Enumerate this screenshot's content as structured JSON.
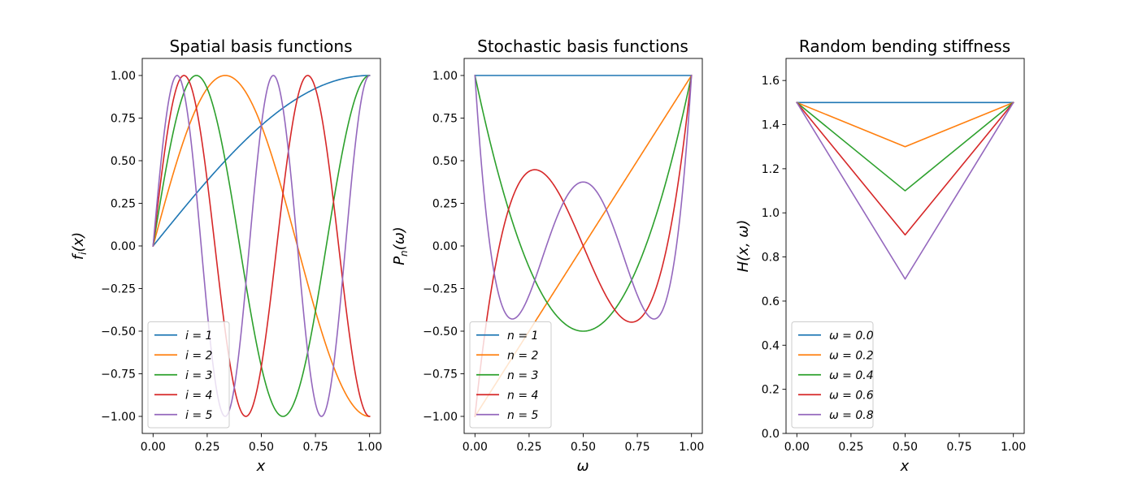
{
  "chart_data": [
    {
      "type": "line",
      "title": "Spatial basis functions",
      "xlabel": "x",
      "ylabel": "f_i(x)",
      "xlim": [
        -0.05,
        1.05
      ],
      "ylim": [
        -1.1,
        1.1
      ],
      "xticks": [
        0.0,
        0.25,
        0.5,
        0.75,
        1.0
      ],
      "xtick_labels": [
        "0.00",
        "0.25",
        "0.50",
        "0.75",
        "1.00"
      ],
      "yticks": [
        -1.0,
        -0.75,
        -0.5,
        -0.25,
        0.0,
        0.25,
        0.5,
        0.75,
        1.0
      ],
      "ytick_labels": [
        "−1.00",
        "−0.75",
        "−0.50",
        "−0.25",
        "0.00",
        "0.25",
        "0.50",
        "0.75",
        "1.00"
      ],
      "legend_position": "lower-left",
      "series": [
        {
          "name": "i = 1",
          "color": "#1f77b4",
          "function": "sin((2i-1)πx/2)",
          "i": 1
        },
        {
          "name": "i = 2",
          "color": "#ff7f0e",
          "function": "sin((2i-1)πx/2)",
          "i": 2
        },
        {
          "name": "i = 3",
          "color": "#2ca02c",
          "function": "sin((2i-1)πx/2)",
          "i": 3
        },
        {
          "name": "i = 4",
          "color": "#d62728",
          "function": "sin((2i-1)πx/2)",
          "i": 4
        },
        {
          "name": "i = 5",
          "color": "#9467bd",
          "function": "sin((2i-1)πx/2)",
          "i": 5
        }
      ]
    },
    {
      "type": "line",
      "title": "Stochastic basis functions",
      "xlabel": "ω",
      "ylabel": "P_n(ω)",
      "xlim": [
        -0.05,
        1.05
      ],
      "ylim": [
        -1.1,
        1.1
      ],
      "xticks": [
        0.0,
        0.25,
        0.5,
        0.75,
        1.0
      ],
      "xtick_labels": [
        "0.00",
        "0.25",
        "0.50",
        "0.75",
        "1.00"
      ],
      "yticks": [
        -1.0,
        -0.75,
        -0.5,
        -0.25,
        0.0,
        0.25,
        0.5,
        0.75,
        1.0
      ],
      "ytick_labels": [
        "−1.00",
        "−0.75",
        "−0.50",
        "−0.25",
        "0.00",
        "0.25",
        "0.50",
        "0.75",
        "1.00"
      ],
      "legend_position": "lower-left",
      "series": [
        {
          "name": "n = 1",
          "color": "#1f77b4",
          "function": "shifted Legendre P_{n-1}(2ω-1)",
          "n": 1
        },
        {
          "name": "n = 2",
          "color": "#ff7f0e",
          "function": "shifted Legendre P_{n-1}(2ω-1)",
          "n": 2
        },
        {
          "name": "n = 3",
          "color": "#2ca02c",
          "function": "shifted Legendre P_{n-1}(2ω-1)",
          "n": 3
        },
        {
          "name": "n = 4",
          "color": "#d62728",
          "function": "shifted Legendre P_{n-1}(2ω-1)",
          "n": 4
        },
        {
          "name": "n = 5",
          "color": "#9467bd",
          "function": "shifted Legendre P_{n-1}(2ω-1)",
          "n": 5
        }
      ]
    },
    {
      "type": "line",
      "title": "Random bending stiffness",
      "xlabel": "x",
      "ylabel": "H(x, ω)",
      "xlim": [
        -0.05,
        1.05
      ],
      "ylim": [
        0.0,
        1.7
      ],
      "xticks": [
        0.0,
        0.25,
        0.5,
        0.75,
        1.0
      ],
      "xtick_labels": [
        "0.00",
        "0.25",
        "0.50",
        "0.75",
        "1.00"
      ],
      "yticks": [
        0.0,
        0.2,
        0.4,
        0.6,
        0.8,
        1.0,
        1.2,
        1.4,
        1.6
      ],
      "ytick_labels": [
        "0.0",
        "0.2",
        "0.4",
        "0.6",
        "0.8",
        "1.0",
        "1.2",
        "1.4",
        "1.6"
      ],
      "legend_position": "lower-left",
      "series": [
        {
          "name": "ω = 0.0",
          "color": "#1f77b4",
          "x": [
            0.0,
            0.5,
            1.0
          ],
          "y": [
            1.5,
            1.5,
            1.5
          ]
        },
        {
          "name": "ω = 0.2",
          "color": "#ff7f0e",
          "x": [
            0.0,
            0.5,
            1.0
          ],
          "y": [
            1.5,
            1.3,
            1.5
          ]
        },
        {
          "name": "ω = 0.4",
          "color": "#2ca02c",
          "x": [
            0.0,
            0.5,
            1.0
          ],
          "y": [
            1.5,
            1.1,
            1.5
          ]
        },
        {
          "name": "ω = 0.6",
          "color": "#d62728",
          "x": [
            0.0,
            0.5,
            1.0
          ],
          "y": [
            1.5,
            0.9,
            1.5
          ]
        },
        {
          "name": "ω = 0.8",
          "color": "#9467bd",
          "x": [
            0.0,
            0.5,
            1.0
          ],
          "y": [
            1.5,
            0.7,
            1.5
          ]
        }
      ]
    }
  ]
}
